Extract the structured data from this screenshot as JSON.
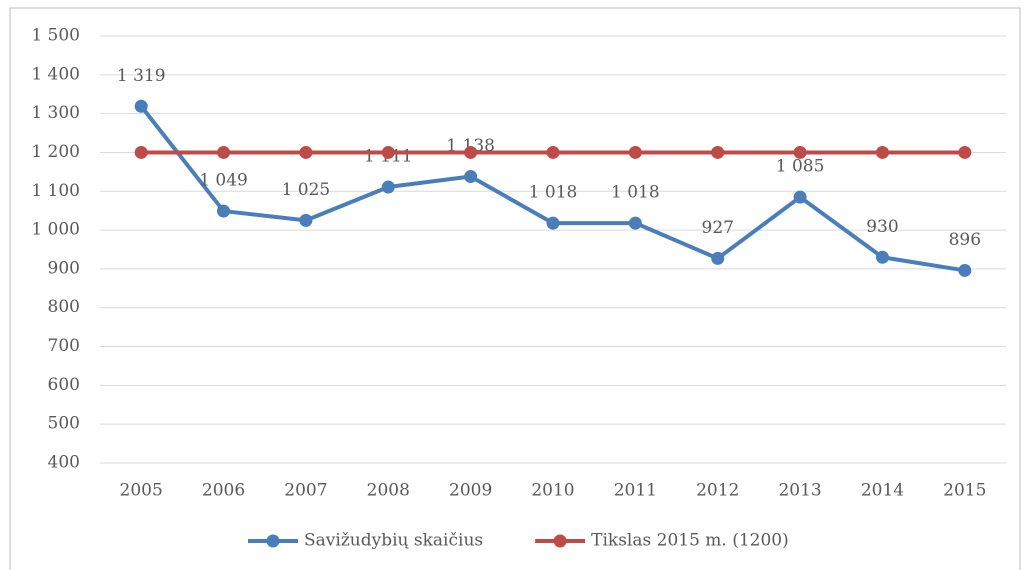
{
  "chart_data": {
    "type": "line",
    "categories": [
      "2005",
      "2006",
      "2007",
      "2008",
      "2009",
      "2010",
      "2011",
      "2012",
      "2013",
      "2014",
      "2015"
    ],
    "series": [
      {
        "name": "Savižudybių skaičius",
        "color": "#4a7ebb",
        "values": [
          1319,
          1049,
          1025,
          1111,
          1138,
          1018,
          1018,
          927,
          1085,
          930,
          896
        ],
        "value_labels": [
          "1 319",
          "1 049",
          "1 025",
          "1 111",
          "1 138",
          "1 018",
          "1 018",
          "927",
          "1 085",
          "930",
          "896"
        ]
      },
      {
        "name": "Tikslas 2015 m. (1200)",
        "color": "#be4b48",
        "values": [
          1200,
          1200,
          1200,
          1200,
          1200,
          1200,
          1200,
          1200,
          1200,
          1200,
          1200
        ]
      }
    ],
    "ylim": [
      400,
      1500
    ],
    "yticks": [
      400,
      500,
      600,
      700,
      800,
      900,
      {
        "value": 1000,
        "label": "1 000"
      },
      {
        "value": 1100,
        "label": "1 100"
      },
      {
        "value": 1200,
        "label": "1 200"
      },
      {
        "value": 1300,
        "label": "1 300"
      },
      {
        "value": 1400,
        "label": "1 400"
      },
      {
        "value": 1500,
        "label": "1 500"
      }
    ],
    "grid": true,
    "legend": "bottom"
  }
}
